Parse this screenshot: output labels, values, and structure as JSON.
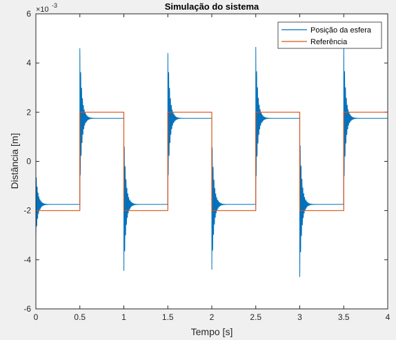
{
  "chart_data": {
    "type": "line",
    "title": "Simulação do sistema",
    "xlabel": "Tempo [s]",
    "ylabel": "Distância [m]",
    "y_exponent_label": "×10",
    "y_exponent_value": "-3",
    "xlim": [
      0,
      4
    ],
    "ylim": [
      -6,
      6
    ],
    "y_scale_factor": 0.001,
    "xticks": [
      0,
      0.5,
      1,
      1.5,
      2,
      2.5,
      3,
      3.5,
      4
    ],
    "xtick_labels": [
      "0",
      "0.5",
      "1",
      "1.5",
      "2",
      "2.5",
      "3",
      "3.5",
      "4"
    ],
    "yticks": [
      -6,
      -4,
      -2,
      0,
      2,
      4,
      6
    ],
    "ytick_labels": [
      "-6",
      "-4",
      "-2",
      "0",
      "2",
      "4",
      "6"
    ],
    "grid": false,
    "legend_position": "top-right",
    "series": [
      {
        "name": "Posição da esfera",
        "color": "#0072bd",
        "response": {
          "steady_levels": [
            -1.75,
            1.75
          ],
          "peaks": [
            -3.1,
            4.6,
            -4.65,
            4.6,
            -4.6,
            4.65,
            -4.7,
            4.65
          ],
          "switch_times": [
            0,
            0.5,
            1,
            1.5,
            2,
            2.5,
            3,
            3.5
          ],
          "period": 0.01,
          "decay_time": 0.024
        }
      },
      {
        "name": "Referência",
        "color": "#d95319",
        "x": [
          0,
          0.5,
          0.5,
          1,
          1,
          1.5,
          1.5,
          2,
          2,
          2.5,
          2.5,
          3,
          3,
          3.5,
          3.5,
          4
        ],
        "y": [
          -2,
          -2,
          2,
          2,
          -2,
          -2,
          2,
          2,
          -2,
          -2,
          2,
          2,
          -2,
          -2,
          2,
          2
        ]
      }
    ]
  }
}
